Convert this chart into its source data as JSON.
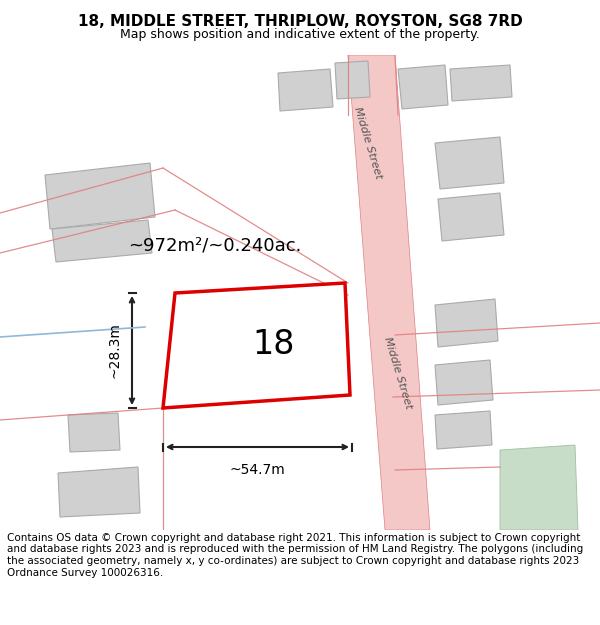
{
  "title": "18, MIDDLE STREET, THRIPLOW, ROYSTON, SG8 7RD",
  "subtitle": "Map shows position and indicative extent of the property.",
  "footer": "Contains OS data © Crown copyright and database right 2021. This information is subject to Crown copyright and database rights 2023 and is reproduced with the permission of HM Land Registry. The polygons (including the associated geometry, namely x, y co-ordinates) are subject to Crown copyright and database rights 2023 Ordnance Survey 100026316.",
  "title_fontsize": 11,
  "subtitle_fontsize": 9,
  "footer_fontsize": 7.5,
  "area_label": "~972m²/~0.240ac.",
  "width_label": "~54.7m",
  "height_label": "~28.3m",
  "number_label": "18",
  "red_color": "#dd0000",
  "road_color": "#f5c8c8",
  "building_color": "#d0d0d0",
  "road_line_color": "#e08080",
  "street_label": "Middle Street"
}
